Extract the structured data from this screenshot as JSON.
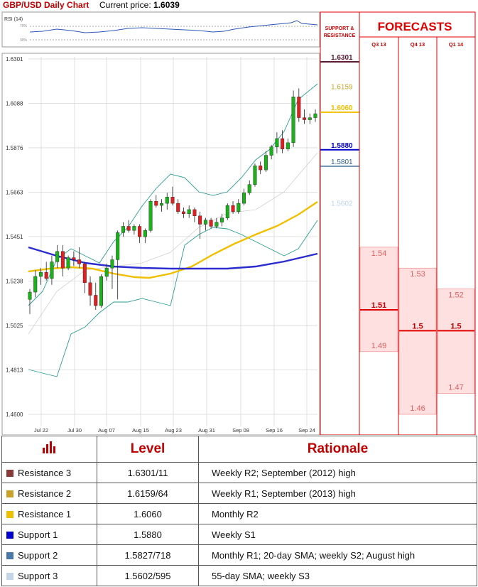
{
  "header": {
    "title": "GBP/USD Daily Chart",
    "price_label": "Current price:",
    "price_value": "1.6039"
  },
  "rsi": {
    "label": "RSI (14)",
    "level_high": "70%",
    "level_low": "30%"
  },
  "chart_data": {
    "type": "candlestick",
    "y_ticks": [
      "1.6301",
      "1.6088",
      "1.5876",
      "1.5663",
      "1.5451",
      "1.5238",
      "1.5025",
      "1.4813",
      "1.4600"
    ],
    "ylim": [
      1.46,
      1.6301
    ],
    "x_ticks": [
      "Jul 22",
      "Jul 30",
      "Aug 07",
      "Aug 15",
      "Aug 23",
      "Aug 31",
      "Sep 08",
      "Sep 16",
      "Sep 24"
    ],
    "candles": [
      {
        "o": 1.515,
        "h": 1.52,
        "l": 1.508,
        "c": 1.5185
      },
      {
        "o": 1.5185,
        "h": 1.529,
        "l": 1.516,
        "c": 1.526
      },
      {
        "o": 1.526,
        "h": 1.53,
        "l": 1.522,
        "c": 1.528
      },
      {
        "o": 1.528,
        "h": 1.533,
        "l": 1.524,
        "c": 1.525
      },
      {
        "o": 1.525,
        "h": 1.536,
        "l": 1.522,
        "c": 1.533
      },
      {
        "o": 1.533,
        "h": 1.541,
        "l": 1.53,
        "c": 1.538
      },
      {
        "o": 1.538,
        "h": 1.541,
        "l": 1.526,
        "c": 1.53
      },
      {
        "o": 1.53,
        "h": 1.536,
        "l": 1.529,
        "c": 1.535
      },
      {
        "o": 1.535,
        "h": 1.538,
        "l": 1.531,
        "c": 1.534
      },
      {
        "o": 1.534,
        "h": 1.54,
        "l": 1.53,
        "c": 1.532
      },
      {
        "o": 1.532,
        "h": 1.533,
        "l": 1.518,
        "c": 1.523
      },
      {
        "o": 1.523,
        "h": 1.526,
        "l": 1.512,
        "c": 1.517
      },
      {
        "o": 1.517,
        "h": 1.523,
        "l": 1.51,
        "c": 1.512
      },
      {
        "o": 1.512,
        "h": 1.527,
        "l": 1.511,
        "c": 1.526
      },
      {
        "o": 1.526,
        "h": 1.532,
        "l": 1.524,
        "c": 1.53
      },
      {
        "o": 1.53,
        "h": 1.536,
        "l": 1.52,
        "c": 1.534
      },
      {
        "o": 1.534,
        "h": 1.548,
        "l": 1.515,
        "c": 1.547
      },
      {
        "o": 1.547,
        "h": 1.552,
        "l": 1.545,
        "c": 1.55
      },
      {
        "o": 1.55,
        "h": 1.553,
        "l": 1.547,
        "c": 1.548
      },
      {
        "o": 1.548,
        "h": 1.551,
        "l": 1.546,
        "c": 1.55
      },
      {
        "o": 1.55,
        "h": 1.551,
        "l": 1.542,
        "c": 1.545
      },
      {
        "o": 1.545,
        "h": 1.549,
        "l": 1.542,
        "c": 1.548
      },
      {
        "o": 1.548,
        "h": 1.563,
        "l": 1.547,
        "c": 1.562
      },
      {
        "o": 1.562,
        "h": 1.565,
        "l": 1.559,
        "c": 1.56
      },
      {
        "o": 1.56,
        "h": 1.563,
        "l": 1.557,
        "c": 1.561
      },
      {
        "o": 1.561,
        "h": 1.566,
        "l": 1.558,
        "c": 1.564
      },
      {
        "o": 1.564,
        "h": 1.569,
        "l": 1.56,
        "c": 1.561
      },
      {
        "o": 1.561,
        "h": 1.563,
        "l": 1.556,
        "c": 1.557
      },
      {
        "o": 1.557,
        "h": 1.559,
        "l": 1.554,
        "c": 1.556
      },
      {
        "o": 1.556,
        "h": 1.56,
        "l": 1.554,
        "c": 1.558
      },
      {
        "o": 1.558,
        "h": 1.559,
        "l": 1.552,
        "c": 1.555
      },
      {
        "o": 1.555,
        "h": 1.557,
        "l": 1.544,
        "c": 1.551
      },
      {
        "o": 1.551,
        "h": 1.554,
        "l": 1.548,
        "c": 1.553
      },
      {
        "o": 1.553,
        "h": 1.554,
        "l": 1.549,
        "c": 1.55
      },
      {
        "o": 1.55,
        "h": 1.554,
        "l": 1.549,
        "c": 1.552
      },
      {
        "o": 1.552,
        "h": 1.556,
        "l": 1.55,
        "c": 1.554
      },
      {
        "o": 1.554,
        "h": 1.561,
        "l": 1.553,
        "c": 1.56
      },
      {
        "o": 1.56,
        "h": 1.562,
        "l": 1.556,
        "c": 1.557
      },
      {
        "o": 1.557,
        "h": 1.563,
        "l": 1.556,
        "c": 1.561
      },
      {
        "o": 1.561,
        "h": 1.568,
        "l": 1.56,
        "c": 1.566
      },
      {
        "o": 1.566,
        "h": 1.572,
        "l": 1.565,
        "c": 1.57
      },
      {
        "o": 1.57,
        "h": 1.58,
        "l": 1.569,
        "c": 1.579
      },
      {
        "o": 1.579,
        "h": 1.581,
        "l": 1.575,
        "c": 1.577
      },
      {
        "o": 1.577,
        "h": 1.586,
        "l": 1.576,
        "c": 1.584
      },
      {
        "o": 1.584,
        "h": 1.589,
        "l": 1.582,
        "c": 1.588
      },
      {
        "o": 1.588,
        "h": 1.595,
        "l": 1.585,
        "c": 1.592
      },
      {
        "o": 1.592,
        "h": 1.596,
        "l": 1.585,
        "c": 1.587
      },
      {
        "o": 1.587,
        "h": 1.592,
        "l": 1.586,
        "c": 1.59
      },
      {
        "o": 1.59,
        "h": 1.615,
        "l": 1.588,
        "c": 1.612
      },
      {
        "o": 1.612,
        "h": 1.616,
        "l": 1.6,
        "c": 1.602
      },
      {
        "o": 1.602,
        "h": 1.606,
        "l": 1.599,
        "c": 1.601
      },
      {
        "o": 1.601,
        "h": 1.604,
        "l": 1.599,
        "c": 1.602
      },
      {
        "o": 1.602,
        "h": 1.606,
        "l": 1.6,
        "c": 1.6039
      }
    ]
  },
  "side": {
    "header": "SUPPORT & RESISTANCE",
    "levels": [
      {
        "value": "1.6301",
        "color": "#5c1a33",
        "bold": true,
        "line": true
      },
      {
        "value": "1.6159",
        "color": "#c9a227",
        "bold": false,
        "line": false
      },
      {
        "value": "1.6060",
        "color": "#f0c000",
        "bold": true,
        "line": true
      },
      {
        "value": "1.5880",
        "color": "#0000cc",
        "bold": true,
        "line": true
      },
      {
        "value": "1.5801",
        "color": "#2f5f8f",
        "bold": false,
        "line": true
      },
      {
        "value": "1.5602",
        "color": "#bcd3e8",
        "bold": false,
        "line": false
      }
    ]
  },
  "forecasts": {
    "title": "FORECASTS",
    "columns": [
      {
        "label": "Q3 13",
        "high": "1.54",
        "mid": "1.51",
        "low": "1.49"
      },
      {
        "label": "Q4 13",
        "high": "1.53",
        "mid": "1.5",
        "low": "1.46"
      },
      {
        "label": "Q1 14",
        "high": "1.52",
        "mid": "1.5",
        "low": "1.47"
      }
    ]
  },
  "table": {
    "col_level": "Level",
    "col_rationale": "Rationale",
    "rows": [
      {
        "name": "Resistance 3",
        "level": "1.6301/11",
        "rationale": "Weekly R2; September (2012) high",
        "color": "#8b3a3a"
      },
      {
        "name": "Resistance 2",
        "level": "1.6159/64",
        "rationale": "Weekly R1; September (2013) high",
        "color": "#c9a227"
      },
      {
        "name": "Resistance 1",
        "level": "1.6060",
        "rationale": "Monthly R2",
        "color": "#f0c000"
      },
      {
        "name": "Support 1",
        "level": "1.5880",
        "rationale": "Weekly S1",
        "color": "#0000cc"
      },
      {
        "name": "Support 2",
        "level": "1.5827/718",
        "rationale": "Monthly R1; 20-day SMA; weekly S2; August high",
        "color": "#4a79a9"
      },
      {
        "name": "Support 3",
        "level": "1.5602/595",
        "rationale": "55-day SMA; weekly S3",
        "color": "#c5d5e8"
      }
    ]
  }
}
